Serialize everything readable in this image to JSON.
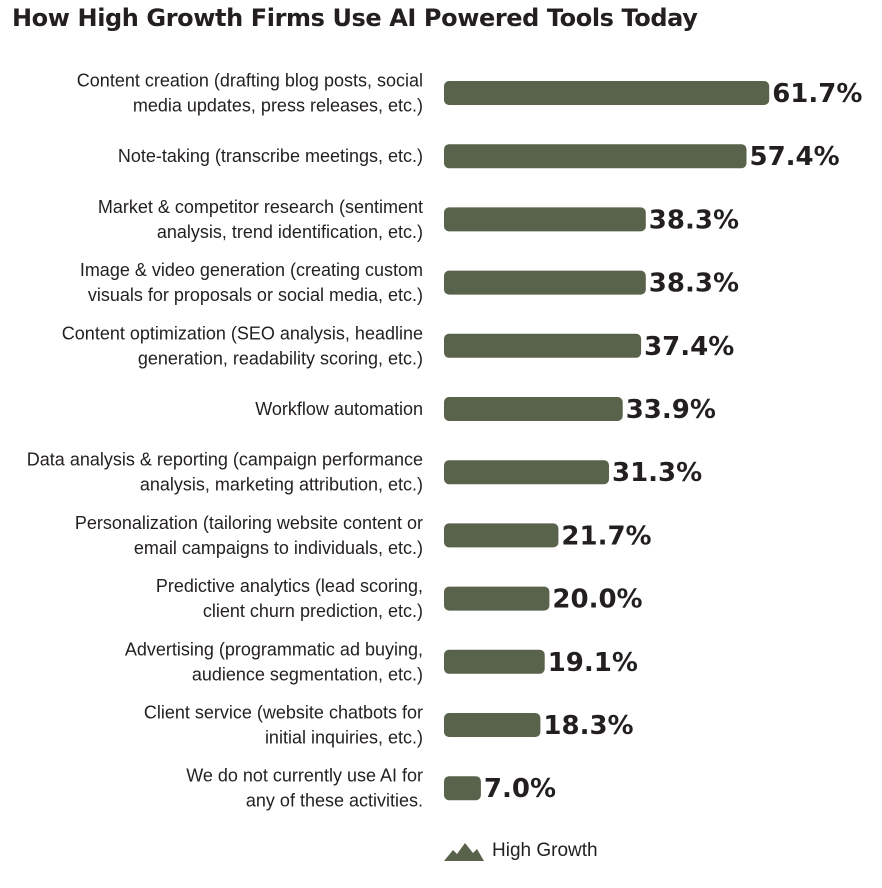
{
  "title": "How High Growth Firms Use AI Powered Tools Today",
  "colors": {
    "bar": "#59624a",
    "text": "#231f20"
  },
  "legend": {
    "label": "High Growth",
    "icon": "mountain-icon"
  },
  "chart_data": {
    "type": "bar",
    "orientation": "horizontal",
    "title": "How High Growth Firms Use AI Powered Tools Today",
    "xlabel": "",
    "ylabel": "",
    "legend_position": "bottom",
    "grid": false,
    "categories": [
      [
        "Content creation (drafting blog posts, social",
        "media updates, press releases, etc.)"
      ],
      [
        "Note-taking (transcribe meetings, etc.)"
      ],
      [
        "Market & competitor research (sentiment",
        "analysis, trend identification, etc.)"
      ],
      [
        "Image & video generation (creating custom",
        "visuals for proposals or social media, etc.)"
      ],
      [
        "Content optimization (SEO analysis, headline",
        "generation, readability scoring, etc.)"
      ],
      [
        "Workflow automation"
      ],
      [
        "Data analysis & reporting (campaign performance",
        "analysis, marketing attribution, etc.)"
      ],
      [
        "Personalization (tailoring website content or",
        "email campaigns to individuals, etc.)"
      ],
      [
        "Predictive analytics (lead scoring,",
        "client churn prediction, etc.)"
      ],
      [
        "Advertising (programmatic ad buying,",
        "audience segmentation, etc.)"
      ],
      [
        "Client service (website chatbots for",
        "initial inquiries, etc.)"
      ],
      [
        "We do not currently use AI for",
        "any of these activities."
      ]
    ],
    "series": [
      {
        "name": "High Growth",
        "values": [
          61.7,
          57.4,
          38.3,
          38.3,
          37.4,
          33.9,
          31.3,
          21.7,
          20.0,
          19.1,
          18.3,
          7.0
        ],
        "labels": [
          "61.7%",
          "57.4%",
          "38.3%",
          "38.3%",
          "37.4%",
          "33.9%",
          "31.3%",
          "21.7%",
          "20.0%",
          "19.1%",
          "18.3%",
          "7.0%"
        ]
      }
    ]
  }
}
